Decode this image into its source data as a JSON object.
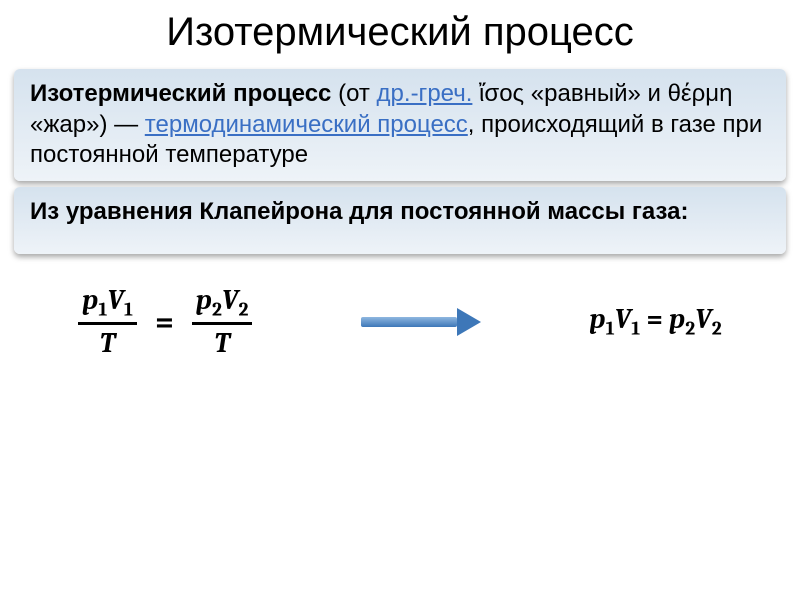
{
  "title": "Изотермический процесс",
  "panel1": {
    "bold_term": "Изотермический процесс",
    "text_after_bold": " (от ",
    "link1": "др.-греч.",
    "greek1": " ἴσος «равный» и θέρμη «жар») — ",
    "link2": "термодинамический процесс",
    "tail": ", происходящий в газе при постоянной температуре"
  },
  "panel2": {
    "text": "Из уравнения Клапейрона для постоянной массы газа:"
  },
  "formula": {
    "left_num_p": "p",
    "left_num_sub": "1",
    "left_num_V": "V",
    "left_num_Vsub": "1",
    "left_den": "T",
    "mid_eq": "=",
    "right_num_p": "p",
    "right_num_sub": "2",
    "right_num_V": "V",
    "right_num_Vsub": "2",
    "right_den": "T",
    "result_p1": "p",
    "result_s1": "1",
    "result_V1": "V",
    "result_Vs1": "1",
    "result_eq": " = ",
    "result_p2": "p",
    "result_s2": "2",
    "result_V2": "V",
    "result_Vs2": "2"
  },
  "colors": {
    "link": "#3a6fc4",
    "panel_grad_top": "#d5e2ee",
    "panel_grad_bot": "#eef3f8",
    "arrow_top": "#8fb7e0",
    "arrow_bot": "#3d77b8",
    "background": "#ffffff"
  },
  "typography": {
    "title_fontsize": 40,
    "body_fontsize": 24,
    "formula_fontsize": 28,
    "formula_weight": "bold"
  }
}
